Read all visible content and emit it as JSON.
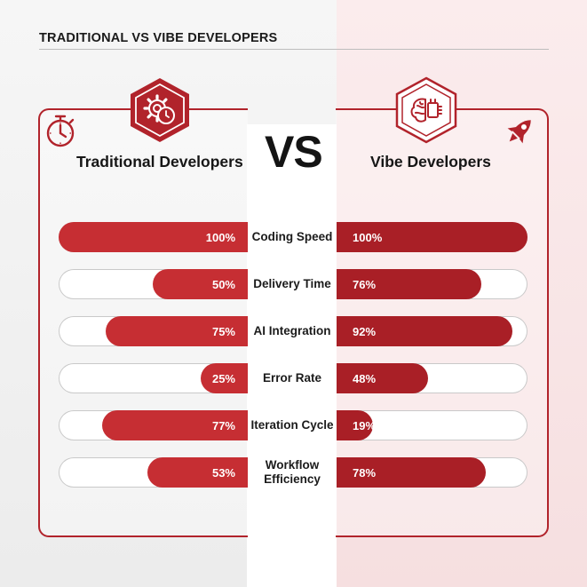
{
  "page_title": "TRADITIONAL VS VIBE DEVELOPERS",
  "vs_label": "VS",
  "left": {
    "title": "Traditional Developers",
    "icon": "stopwatch-icon",
    "badge_icon": "gear-clock-icon"
  },
  "right": {
    "title": "Vibe Developers",
    "icon": "rocket-icon",
    "badge_icon": "brain-chip-icon"
  },
  "colors": {
    "accent": "#b1232b",
    "left_fill": "#c62e33",
    "right_fill": "#a91f26"
  },
  "chart_data": {
    "type": "bar",
    "orientation": "horizontal-diverging",
    "categories": [
      "Coding Speed",
      "Delivery Time",
      "AI Integration",
      "Error Rate",
      "Iteration Cycle",
      "Workflow Efficiency"
    ],
    "series": [
      {
        "name": "Traditional Developers",
        "values": [
          100,
          50,
          75,
          25,
          77,
          53
        ],
        "labels": [
          "100%",
          "50%",
          "75%",
          "25%",
          "77%",
          "53%"
        ]
      },
      {
        "name": "Vibe Developers",
        "values": [
          100,
          76,
          92,
          48,
          19,
          78
        ],
        "labels": [
          "100%",
          "76%",
          "92%",
          "48%",
          "19%",
          "78%"
        ]
      }
    ],
    "xlim": [
      0,
      100
    ]
  }
}
